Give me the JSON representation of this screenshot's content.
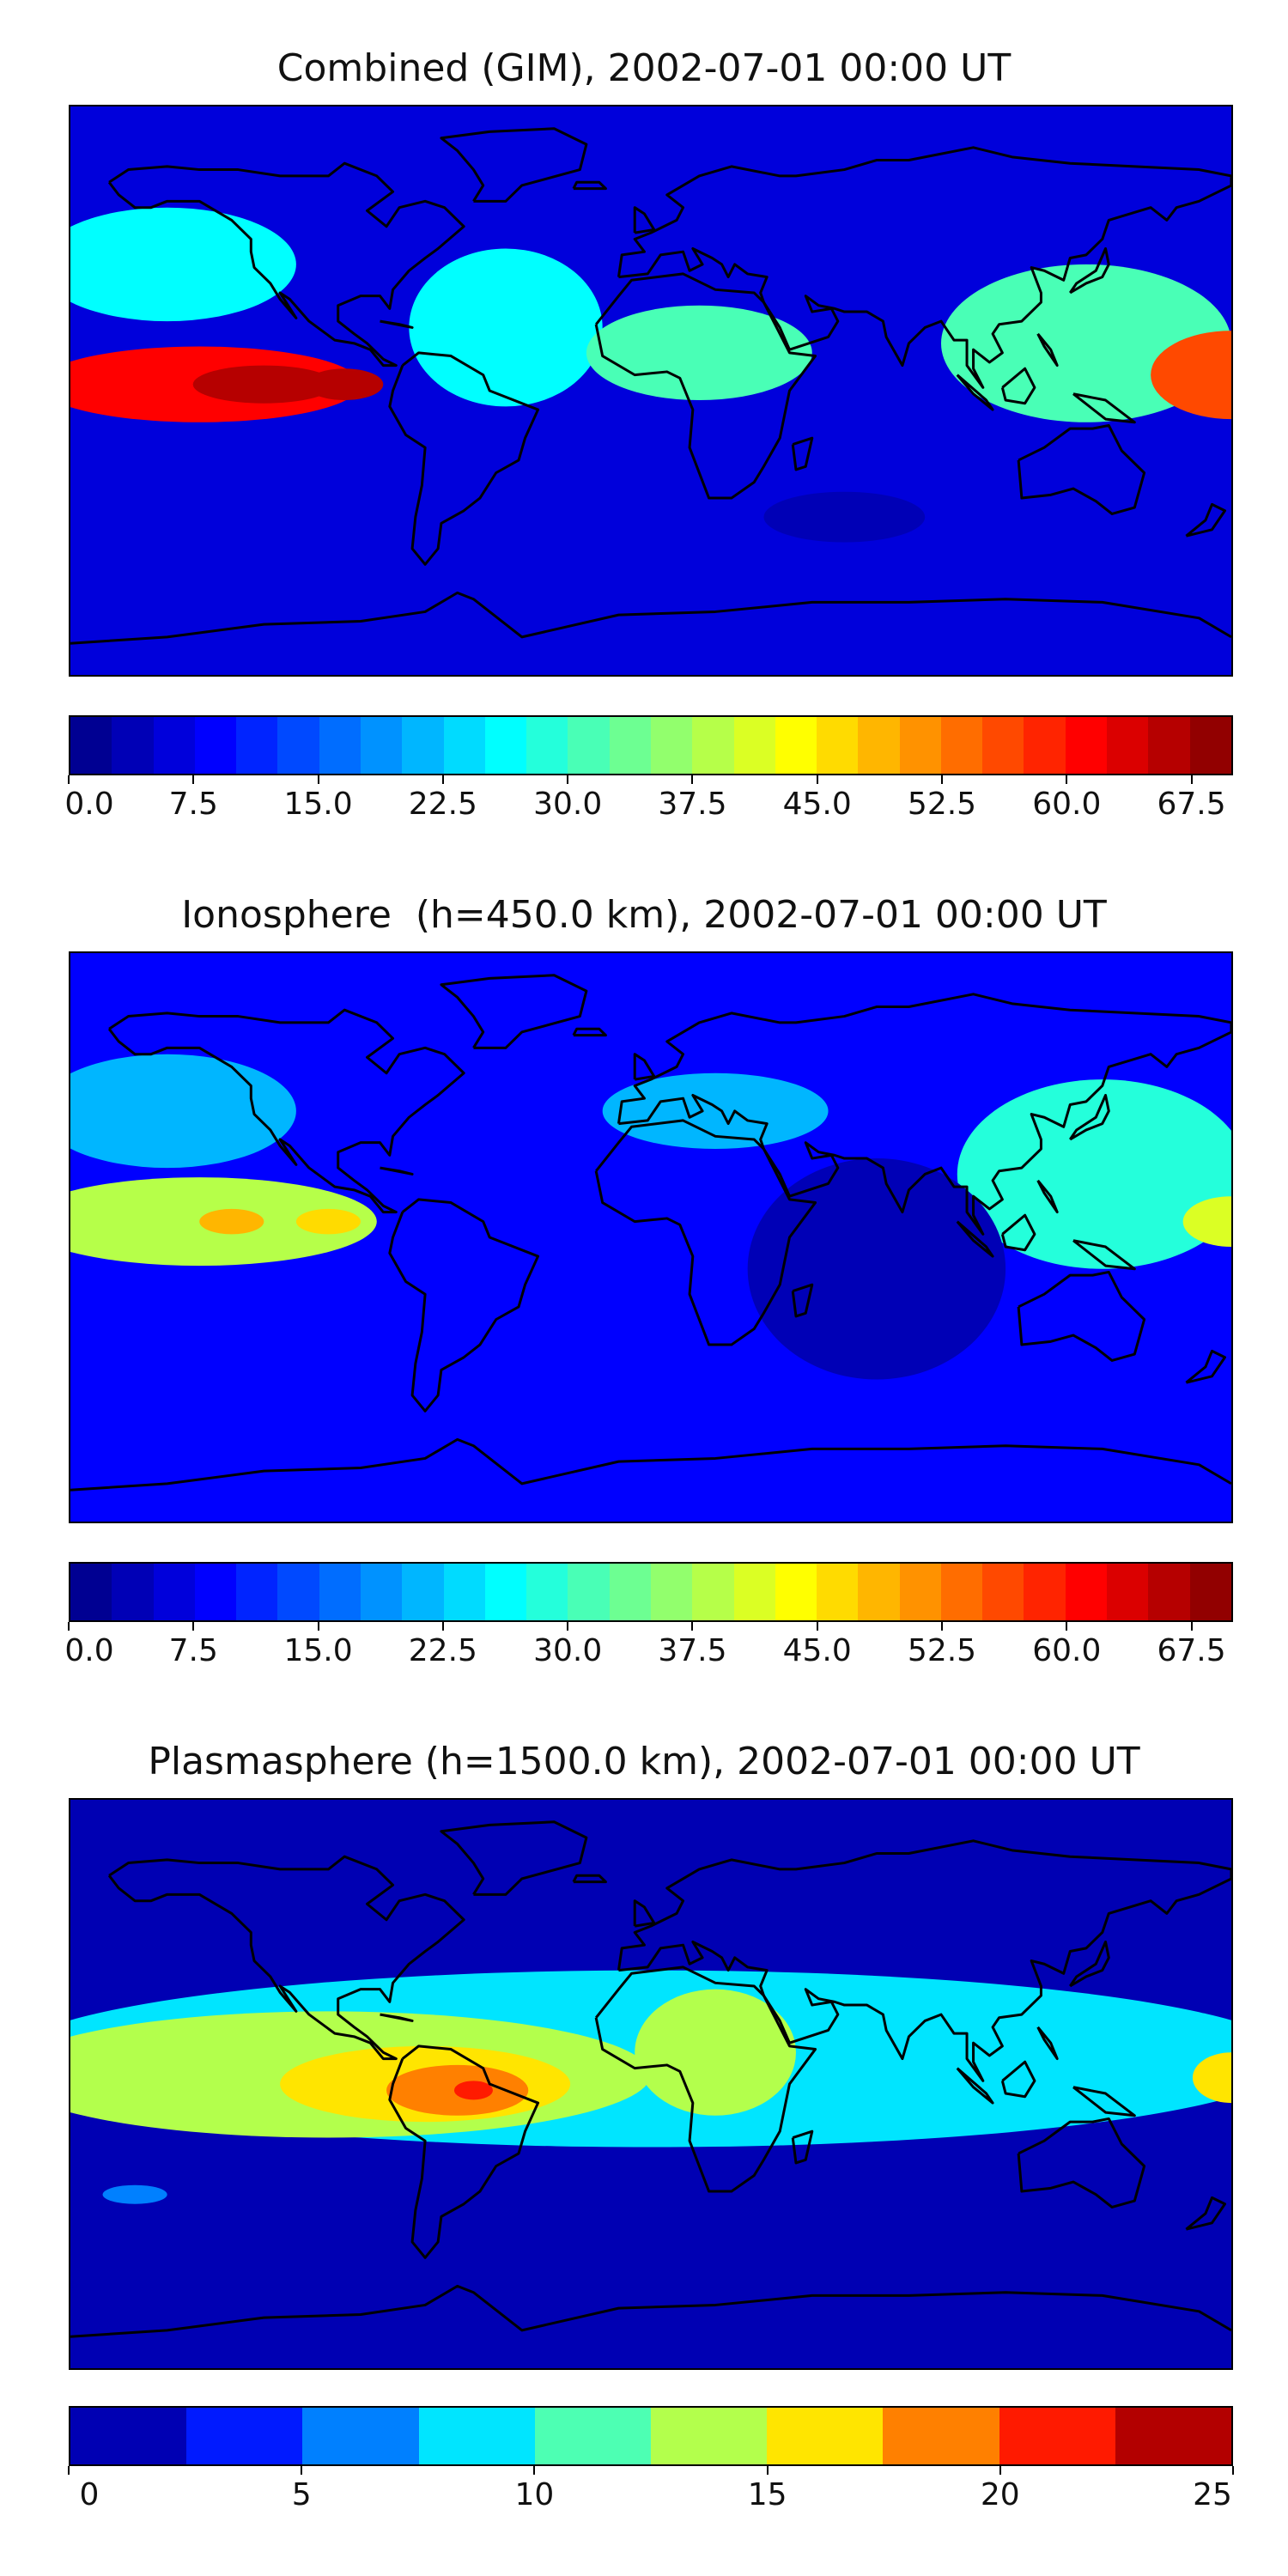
{
  "panels": [
    {
      "title": "Combined (GIM), 2002-07-01 00:00 UT",
      "colorbar": {
        "vmin": 0,
        "vmax": 70,
        "step": 2.5,
        "tick_values": [
          0,
          7.5,
          15,
          22.5,
          30,
          37.5,
          45,
          52.5,
          60,
          67.5
        ],
        "tick_labels": [
          "0.0",
          "7.5",
          "15.0",
          "22.5",
          "30.0",
          "37.5",
          "45.0",
          "52.5",
          "60.0",
          "67.5"
        ]
      },
      "background_level": 6,
      "features": [
        {
          "lon": -140,
          "lat": 2,
          "rx": 50,
          "ry": 12,
          "level": 60
        },
        {
          "lon": -120,
          "lat": 2,
          "rx": 22,
          "ry": 6,
          "level": 67
        },
        {
          "lon": -95,
          "lat": 2,
          "rx": 12,
          "ry": 5,
          "level": 66
        },
        {
          "lon": -150,
          "lat": 40,
          "rx": 40,
          "ry": 18,
          "level": 25
        },
        {
          "lon": -45,
          "lat": 20,
          "rx": 30,
          "ry": 25,
          "level": 25
        },
        {
          "lon": 15,
          "lat": 12,
          "rx": 35,
          "ry": 15,
          "level": 30
        },
        {
          "lon": 135,
          "lat": 15,
          "rx": 45,
          "ry": 25,
          "level": 32
        },
        {
          "lon": 180,
          "lat": 5,
          "rx": 25,
          "ry": 14,
          "level": 55
        },
        {
          "lon": 60,
          "lat": -40,
          "rx": 25,
          "ry": 8,
          "level": 4
        }
      ]
    },
    {
      "title": "Ionosphere  (h=450.0 km), 2002-07-01 00:00 UT",
      "colorbar": {
        "vmin": 0,
        "vmax": 70,
        "step": 2.5,
        "tick_values": [
          0,
          7.5,
          15,
          22.5,
          30,
          37.5,
          45,
          52.5,
          60,
          67.5
        ],
        "tick_labels": [
          "0.0",
          "7.5",
          "15.0",
          "22.5",
          "30.0",
          "37.5",
          "45.0",
          "52.5",
          "60.0",
          "67.5"
        ]
      },
      "background_level": 8,
      "features": [
        {
          "lon": -140,
          "lat": 5,
          "rx": 55,
          "ry": 14,
          "level": 38
        },
        {
          "lon": -130,
          "lat": 5,
          "rx": 10,
          "ry": 4,
          "level": 48
        },
        {
          "lon": -100,
          "lat": 5,
          "rx": 10,
          "ry": 4,
          "level": 45
        },
        {
          "lon": -150,
          "lat": 40,
          "rx": 40,
          "ry": 18,
          "level": 22
        },
        {
          "lon": 20,
          "lat": 40,
          "rx": 35,
          "ry": 12,
          "level": 22
        },
        {
          "lon": 140,
          "lat": 20,
          "rx": 45,
          "ry": 30,
          "level": 28
        },
        {
          "lon": 180,
          "lat": 5,
          "rx": 15,
          "ry": 8,
          "level": 40
        },
        {
          "lon": 70,
          "lat": -10,
          "rx": 40,
          "ry": 35,
          "level": 4
        }
      ]
    },
    {
      "title": "Plasmasphere (h=1500.0 km), 2002-07-01 00:00 UT",
      "colorbar": {
        "vmin": 0,
        "vmax": 25,
        "step": 2.5,
        "tick_values": [
          0,
          5,
          10,
          15,
          20,
          25
        ],
        "tick_labels": [
          "0",
          "5",
          "10",
          "15",
          "20",
          "25"
        ]
      },
      "background_level": 2,
      "features": [
        {
          "lon": 0,
          "lat": 8,
          "rx": 200,
          "ry": 28,
          "level": 9
        },
        {
          "lon": -100,
          "lat": 3,
          "rx": 100,
          "ry": 20,
          "level": 13
        },
        {
          "lon": -70,
          "lat": 0,
          "rx": 45,
          "ry": 12,
          "level": 16
        },
        {
          "lon": -60,
          "lat": -2,
          "rx": 22,
          "ry": 8,
          "level": 19
        },
        {
          "lon": -55,
          "lat": -2,
          "rx": 6,
          "ry": 3,
          "level": 21
        },
        {
          "lon": 20,
          "lat": 10,
          "rx": 25,
          "ry": 20,
          "level": 13
        },
        {
          "lon": 180,
          "lat": 2,
          "rx": 12,
          "ry": 8,
          "level": 16
        },
        {
          "lon": -160,
          "lat": -35,
          "rx": 10,
          "ry": 3,
          "level": 6
        }
      ]
    }
  ]
}
